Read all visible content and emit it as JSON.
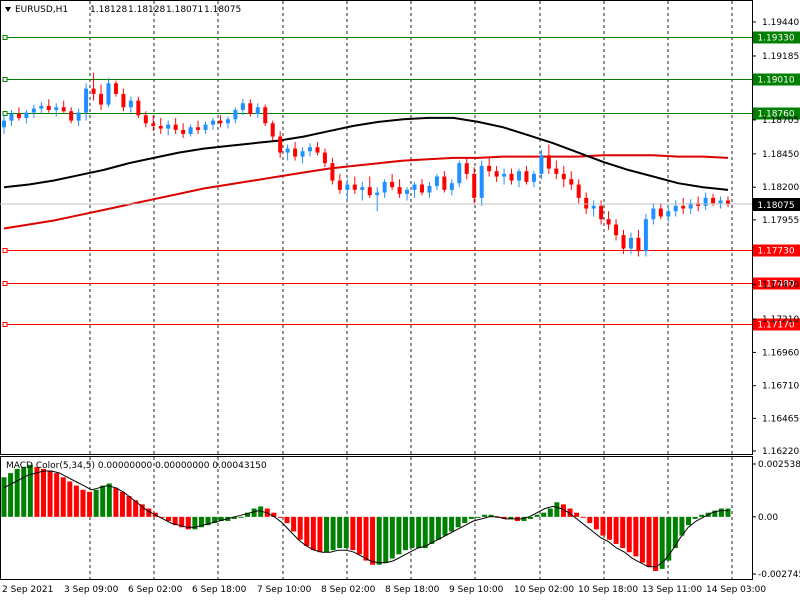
{
  "chart_data": {
    "type": "candlestick",
    "symbol_header": "EURUSD,H1",
    "ohlc_header": [
      "1.18128",
      "1.18128",
      "1.18071",
      "1.18075"
    ],
    "current_price": "1.18075",
    "y_ticks": [
      "1.19440",
      "1.19185",
      "1.18705",
      "1.18450",
      "1.18200",
      "1.17955",
      "1.17470",
      "1.17210",
      "1.16960",
      "1.16710",
      "1.16465",
      "1.16220"
    ],
    "hlines": [
      {
        "label": "1.19330",
        "value": 1.1933,
        "color": "#008000"
      },
      {
        "label": "1.19010",
        "value": 1.1901,
        "color": "#008000"
      },
      {
        "label": "1.18760",
        "value": 1.1876,
        "color": "#008000"
      },
      {
        "label": "1.17730",
        "value": 1.1773,
        "color": "#ff0000"
      },
      {
        "label": "1.17480",
        "value": 1.1748,
        "color": "#ff0000"
      },
      {
        "label": "1.17170",
        "value": 1.1717,
        "color": "#ff0000"
      }
    ],
    "x_ticks": [
      "2 Sep 2021",
      "3 Sep 09:00",
      "6 Sep 02:00",
      "6 Sep 18:00",
      "7 Sep 10:00",
      "8 Sep 02:00",
      "8 Sep 18:00",
      "9 Sep 10:00",
      "10 Sep 02:00",
      "10 Sep 18:00",
      "13 Sep 11:00",
      "14 Sep 03:00"
    ],
    "candles": [
      [
        1.1865,
        1.1874,
        1.186,
        1.187
      ],
      [
        1.187,
        1.1878,
        1.1866,
        1.1875
      ],
      [
        1.1875,
        1.188,
        1.187,
        1.1872
      ],
      [
        1.1872,
        1.1878,
        1.1868,
        1.1876
      ],
      [
        1.1876,
        1.1882,
        1.1872,
        1.1879
      ],
      [
        1.1879,
        1.1884,
        1.1875,
        1.1881
      ],
      [
        1.1881,
        1.1886,
        1.1876,
        1.1878
      ],
      [
        1.1878,
        1.1883,
        1.1873,
        1.188
      ],
      [
        1.188,
        1.1885,
        1.1876,
        1.1877
      ],
      [
        1.1877,
        1.188,
        1.1868,
        1.187
      ],
      [
        1.187,
        1.1879,
        1.1866,
        1.1876
      ],
      [
        1.1876,
        1.1898,
        1.187,
        1.1894
      ],
      [
        1.1894,
        1.1906,
        1.1885,
        1.189
      ],
      [
        1.189,
        1.1897,
        1.1878,
        1.1882
      ],
      [
        1.1882,
        1.1902,
        1.188,
        1.1898
      ],
      [
        1.1898,
        1.19,
        1.1888,
        1.189
      ],
      [
        1.189,
        1.1894,
        1.1877,
        1.188
      ],
      [
        1.188,
        1.1888,
        1.1876,
        1.1885
      ],
      [
        1.1885,
        1.1888,
        1.1872,
        1.1874
      ],
      [
        1.1874,
        1.1877,
        1.1865,
        1.1868
      ],
      [
        1.1868,
        1.1874,
        1.1862,
        1.1866
      ],
      [
        1.1866,
        1.1872,
        1.186,
        1.1864
      ],
      [
        1.1864,
        1.187,
        1.1859,
        1.1867
      ],
      [
        1.1867,
        1.1872,
        1.186,
        1.1863
      ],
      [
        1.1863,
        1.1868,
        1.1857,
        1.186
      ],
      [
        1.186,
        1.1867,
        1.1858,
        1.1865
      ],
      [
        1.1865,
        1.187,
        1.186,
        1.1863
      ],
      [
        1.1863,
        1.1869,
        1.186,
        1.1867
      ],
      [
        1.1867,
        1.1872,
        1.1863,
        1.187
      ],
      [
        1.187,
        1.1874,
        1.1865,
        1.1868
      ],
      [
        1.1868,
        1.1873,
        1.1864,
        1.1871
      ],
      [
        1.1871,
        1.188,
        1.1868,
        1.1878
      ],
      [
        1.1878,
        1.1886,
        1.1874,
        1.1883
      ],
      [
        1.1883,
        1.1886,
        1.1873,
        1.1875
      ],
      [
        1.1875,
        1.1883,
        1.1872,
        1.188
      ],
      [
        1.188,
        1.1882,
        1.1866,
        1.1868
      ],
      [
        1.1868,
        1.187,
        1.1855,
        1.1858
      ],
      [
        1.1858,
        1.1862,
        1.1842,
        1.1846
      ],
      [
        1.1846,
        1.1852,
        1.184,
        1.1849
      ],
      [
        1.1849,
        1.1854,
        1.184,
        1.1843
      ],
      [
        1.1843,
        1.185,
        1.1838,
        1.1847
      ],
      [
        1.1847,
        1.1853,
        1.1843,
        1.185
      ],
      [
        1.185,
        1.1854,
        1.1844,
        1.1846
      ],
      [
        1.1846,
        1.1849,
        1.1835,
        1.1838
      ],
      [
        1.1838,
        1.1842,
        1.1822,
        1.1825
      ],
      [
        1.1825,
        1.183,
        1.1815,
        1.1818
      ],
      [
        1.1818,
        1.1826,
        1.181,
        1.1822
      ],
      [
        1.1822,
        1.1828,
        1.1815,
        1.1818
      ],
      [
        1.1818,
        1.1824,
        1.181,
        1.182
      ],
      [
        1.182,
        1.1828,
        1.1812,
        1.1814
      ],
      [
        1.1814,
        1.182,
        1.1802,
        1.1816
      ],
      [
        1.1816,
        1.1826,
        1.1812,
        1.1824
      ],
      [
        1.1824,
        1.183,
        1.1818,
        1.182
      ],
      [
        1.182,
        1.1826,
        1.1812,
        1.1815
      ],
      [
        1.1815,
        1.182,
        1.181,
        1.1818
      ],
      [
        1.1818,
        1.1824,
        1.1812,
        1.1822
      ],
      [
        1.1822,
        1.1826,
        1.1814,
        1.1816
      ],
      [
        1.1816,
        1.1824,
        1.1812,
        1.1821
      ],
      [
        1.1821,
        1.183,
        1.1818,
        1.1828
      ],
      [
        1.1828,
        1.1832,
        1.1816,
        1.1818
      ],
      [
        1.1818,
        1.1826,
        1.1814,
        1.1823
      ],
      [
        1.1823,
        1.184,
        1.182,
        1.1838
      ],
      [
        1.1838,
        1.1842,
        1.1826,
        1.183
      ],
      [
        1.183,
        1.1835,
        1.1808,
        1.1812
      ],
      [
        1.1812,
        1.184,
        1.1806,
        1.1836
      ],
      [
        1.1836,
        1.1842,
        1.1828,
        1.1832
      ],
      [
        1.1832,
        1.1836,
        1.1824,
        1.1828
      ],
      [
        1.1828,
        1.1834,
        1.1822,
        1.183
      ],
      [
        1.183,
        1.1834,
        1.1822,
        1.1825
      ],
      [
        1.1825,
        1.1834,
        1.182,
        1.1832
      ],
      [
        1.1832,
        1.1836,
        1.1822,
        1.1824
      ],
      [
        1.1824,
        1.1832,
        1.182,
        1.183
      ],
      [
        1.183,
        1.1848,
        1.1826,
        1.1844
      ],
      [
        1.1844,
        1.1852,
        1.183,
        1.1834
      ],
      [
        1.1834,
        1.184,
        1.1826,
        1.183
      ],
      [
        1.183,
        1.1836,
        1.182,
        1.1826
      ],
      [
        1.1826,
        1.1832,
        1.1818,
        1.1822
      ],
      [
        1.1822,
        1.1826,
        1.1808,
        1.1812
      ],
      [
        1.1812,
        1.1816,
        1.18,
        1.1804
      ],
      [
        1.1804,
        1.181,
        1.1798,
        1.1806
      ],
      [
        1.1806,
        1.181,
        1.1792,
        1.1796
      ],
      [
        1.1796,
        1.1802,
        1.1788,
        1.1792
      ],
      [
        1.1792,
        1.1796,
        1.178,
        1.1784
      ],
      [
        1.1784,
        1.1788,
        1.177,
        1.1774
      ],
      [
        1.1774,
        1.1786,
        1.177,
        1.1782
      ],
      [
        1.1782,
        1.1788,
        1.1768,
        1.1772
      ],
      [
        1.1772,
        1.18,
        1.1768,
        1.1796
      ],
      [
        1.1796,
        1.1808,
        1.1792,
        1.1804
      ],
      [
        1.1804,
        1.1808,
        1.1796,
        1.1798
      ],
      [
        1.1798,
        1.1806,
        1.1794,
        1.1802
      ],
      [
        1.1802,
        1.181,
        1.1798,
        1.1806
      ],
      [
        1.1806,
        1.1812,
        1.18,
        1.1804
      ],
      [
        1.1804,
        1.1811,
        1.18,
        1.1808
      ],
      [
        1.1808,
        1.1813,
        1.1802,
        1.1806
      ],
      [
        1.1806,
        1.1816,
        1.1803,
        1.1812
      ],
      [
        1.1812,
        1.1815,
        1.1806,
        1.1808
      ],
      [
        1.1808,
        1.1813,
        1.1804,
        1.181
      ],
      [
        1.181,
        1.1813,
        1.1805,
        1.1807
      ]
    ],
    "ma_black": [
      1.182,
      1.1822,
      1.1825,
      1.1829,
      1.1833,
      1.1838,
      1.1842,
      1.1846,
      1.1849,
      1.1851,
      1.1853,
      1.1855,
      1.1858,
      1.1862,
      1.1866,
      1.1869,
      1.1871,
      1.1872,
      1.1872,
      1.1869,
      1.1865,
      1.1859,
      1.1853,
      1.1846,
      1.1839,
      1.1833,
      1.1828,
      1.1823,
      1.182,
      1.1818
    ],
    "ma_red": [
      1.1789,
      1.1792,
      1.1795,
      1.1799,
      1.1803,
      1.1807,
      1.1811,
      1.1815,
      1.1819,
      1.1822,
      1.1825,
      1.1828,
      1.1831,
      1.1834,
      1.1836,
      1.1838,
      1.184,
      1.1841,
      1.1842,
      1.1842,
      1.1843,
      1.1843,
      1.1843,
      1.1843,
      1.1844,
      1.1844,
      1.1844,
      1.1843,
      1.1843,
      1.1842
    ],
    "macd": {
      "header": "MACD Color(5,34,5) 0.00000000 0.00000000 0.00043150",
      "y_ticks": [
        "0.0025382",
        "0.00",
        "-0.0027450"
      ],
      "hist": [
        0.0019,
        0.0021,
        0.0023,
        0.0024,
        0.0025,
        0.0024,
        0.0023,
        0.0022,
        0.0021,
        0.0019,
        0.0017,
        0.0015,
        0.0013,
        0.0012,
        0.0013,
        0.0015,
        0.0016,
        0.0014,
        0.0012,
        0.001,
        0.0008,
        0.0006,
        0.0004,
        0.0002,
        0.0,
        -0.0002,
        -0.0004,
        -0.0005,
        -0.0006,
        -0.0006,
        -0.0005,
        -0.0004,
        -0.0003,
        -0.0002,
        -0.0002,
        -0.0001,
        0.0,
        0.0002,
        0.0004,
        0.0005,
        0.0004,
        0.0002,
        0.0,
        -0.0003,
        -0.0007,
        -0.0011,
        -0.0014,
        -0.0016,
        -0.0017,
        -0.0017,
        -0.0016,
        -0.0015,
        -0.0015,
        -0.0016,
        -0.0018,
        -0.0021,
        -0.0023,
        -0.0023,
        -0.0022,
        -0.002,
        -0.0018,
        -0.0016,
        -0.0015,
        -0.0015,
        -0.0015,
        -0.0013,
        -0.0011,
        -0.0009,
        -0.0007,
        -0.0005,
        -0.0003,
        -0.0001,
        0.0,
        0.0001,
        0.0001,
        0.0,
        -0.0001,
        -0.0001,
        -0.0002,
        -0.0002,
        -0.0001,
        0.0001,
        0.0002,
        0.0004,
        0.0007,
        0.0006,
        0.0004,
        0.0002,
        0.0,
        -0.0003,
        -0.0006,
        -0.0009,
        -0.0011,
        -0.0013,
        -0.0015,
        -0.0017,
        -0.0019,
        -0.0022,
        -0.0024,
        -0.0026,
        -0.0025,
        -0.0021,
        -0.0015,
        -0.0009,
        -0.0004,
        -0.0001,
        0.0001,
        0.0002,
        0.0003,
        0.0004,
        0.0004
      ],
      "signal": [
        0.0014,
        0.0016,
        0.0018,
        0.002,
        0.0021,
        0.0022,
        0.0022,
        0.0021,
        0.0019,
        0.0017,
        0.0015,
        0.0013,
        0.0014,
        0.0015,
        0.0014,
        0.0012,
        0.0009,
        0.0006,
        0.0003,
        0.0001,
        -0.0001,
        -0.0003,
        -0.0004,
        -0.0005,
        -0.0005,
        -0.0004,
        -0.0003,
        -0.0002,
        -0.0001,
        0.0,
        0.0001,
        0.0002,
        0.0003,
        0.0002,
        0.0,
        -0.0003,
        -0.0007,
        -0.0011,
        -0.0014,
        -0.0016,
        -0.0017,
        -0.0017,
        -0.0016,
        -0.0016,
        -0.0017,
        -0.0019,
        -0.0021,
        -0.0022,
        -0.0022,
        -0.0021,
        -0.0019,
        -0.0017,
        -0.0015,
        -0.0014,
        -0.0012,
        -0.001,
        -0.0008,
        -0.0006,
        -0.0004,
        -0.0002,
        -0.0001,
        0.0,
        0.0,
        -0.0001,
        -0.0001,
        -0.0001,
        0.0,
        0.0002,
        0.0004,
        0.0005,
        0.0004,
        0.0002,
        -0.0001,
        -0.0004,
        -0.0007,
        -0.001,
        -0.0012,
        -0.0015,
        -0.0017,
        -0.002,
        -0.0022,
        -0.0024,
        -0.0024,
        -0.0021,
        -0.0016,
        -0.001,
        -0.0005,
        -0.0002,
        0.0,
        0.0002,
        0.0003,
        0.0003
      ]
    },
    "colors": {
      "bull": "#1e90ff",
      "bear": "#ff0000",
      "hist_up": "#008000",
      "hist_down": "#ff0000",
      "ma_black": "#000000",
      "ma_red": "#dd0000",
      "grid": "#000000"
    }
  }
}
